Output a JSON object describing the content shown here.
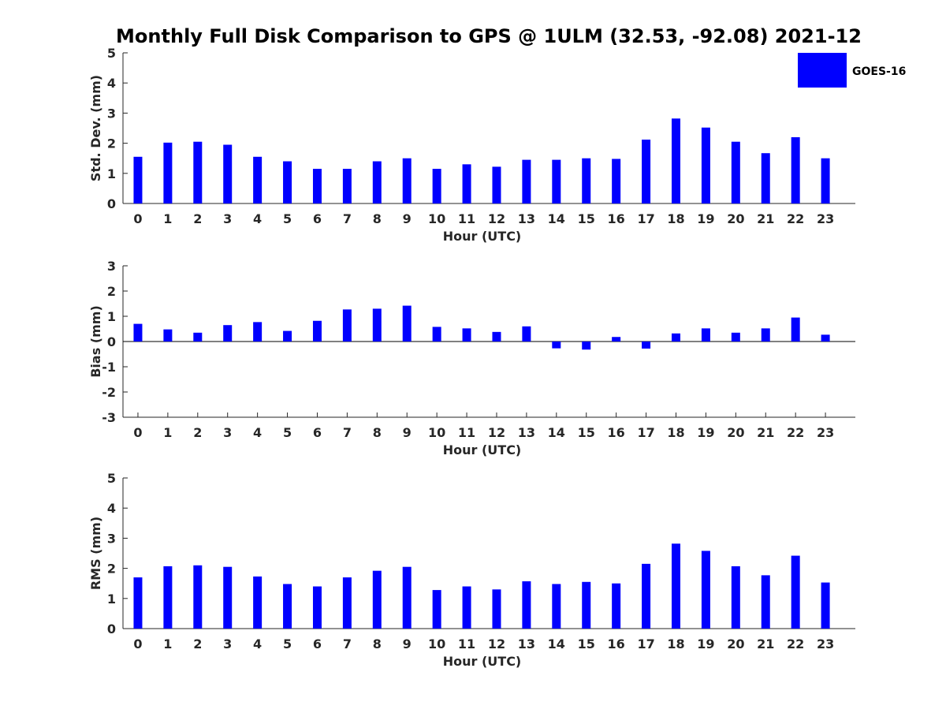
{
  "title": "Monthly Full Disk Comparison to GPS @ 1ULM (32.53, -92.08) 2021-12",
  "legend": {
    "label": "GOES-16",
    "color": "#0000ff"
  },
  "chart_data": [
    {
      "type": "bar",
      "xlabel": "Hour (UTC)",
      "ylabel": "Std. Dev. (mm)",
      "ylim": [
        0,
        5
      ],
      "yticks": [
        0,
        1,
        2,
        3,
        4,
        5
      ],
      "categories": [
        "0",
        "1",
        "2",
        "3",
        "4",
        "5",
        "6",
        "7",
        "8",
        "9",
        "10",
        "11",
        "12",
        "13",
        "14",
        "15",
        "16",
        "17",
        "18",
        "19",
        "20",
        "21",
        "22",
        "23"
      ],
      "series": [
        {
          "name": "GOES-16",
          "color": "#0000ff",
          "values": [
            1.55,
            2.02,
            2.05,
            1.95,
            1.55,
            1.4,
            1.15,
            1.15,
            1.4,
            1.5,
            1.15,
            1.3,
            1.22,
            1.45,
            1.45,
            1.5,
            1.48,
            2.12,
            2.82,
            2.52,
            2.05,
            1.67,
            2.2,
            1.5
          ]
        }
      ]
    },
    {
      "type": "bar",
      "xlabel": "Hour (UTC)",
      "ylabel": "Bias (mm)",
      "ylim": [
        -3,
        3
      ],
      "yticks": [
        -3,
        -2,
        -1,
        0,
        1,
        2,
        3
      ],
      "categories": [
        "0",
        "1",
        "2",
        "3",
        "4",
        "5",
        "6",
        "7",
        "8",
        "9",
        "10",
        "11",
        "12",
        "13",
        "14",
        "15",
        "16",
        "17",
        "18",
        "19",
        "20",
        "21",
        "22",
        "23"
      ],
      "series": [
        {
          "name": "GOES-16",
          "color": "#0000ff",
          "values": [
            0.7,
            0.48,
            0.35,
            0.65,
            0.77,
            0.42,
            0.82,
            1.27,
            1.3,
            1.42,
            0.58,
            0.52,
            0.38,
            0.6,
            -0.27,
            -0.32,
            0.18,
            -0.28,
            0.32,
            0.52,
            0.35,
            0.52,
            0.95,
            0.27
          ]
        }
      ]
    },
    {
      "type": "bar",
      "xlabel": "Hour (UTC)",
      "ylabel": "RMS (mm)",
      "ylim": [
        0,
        5
      ],
      "yticks": [
        0,
        1,
        2,
        3,
        4,
        5
      ],
      "categories": [
        "0",
        "1",
        "2",
        "3",
        "4",
        "5",
        "6",
        "7",
        "8",
        "9",
        "10",
        "11",
        "12",
        "13",
        "14",
        "15",
        "16",
        "17",
        "18",
        "19",
        "20",
        "21",
        "22",
        "23"
      ],
      "series": [
        {
          "name": "GOES-16",
          "color": "#0000ff",
          "values": [
            1.7,
            2.07,
            2.1,
            2.05,
            1.73,
            1.48,
            1.4,
            1.7,
            1.92,
            2.05,
            1.28,
            1.4,
            1.3,
            1.57,
            1.48,
            1.55,
            1.5,
            2.15,
            2.82,
            2.58,
            2.07,
            1.77,
            2.42,
            1.53
          ]
        }
      ]
    }
  ]
}
